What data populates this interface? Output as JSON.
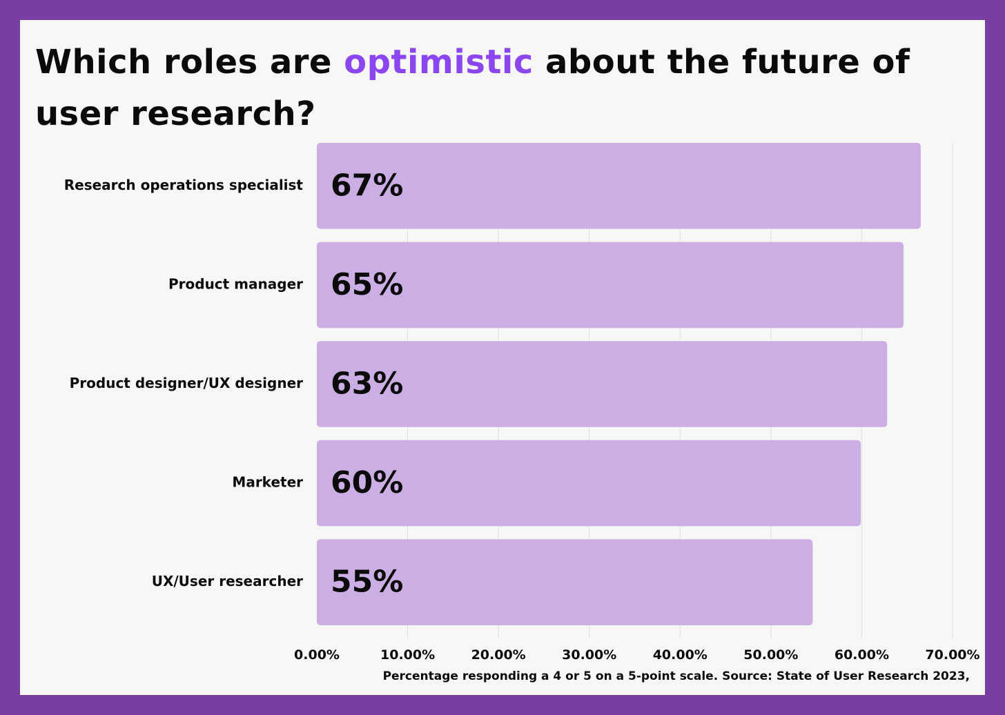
{
  "title": {
    "before": "Which roles are ",
    "accent": "optimistic",
    "after": " about the future of user research?"
  },
  "footnote": "Percentage responding a 4 or 5 on a 5-point scale. Source: State of User Research 2023,",
  "colors": {
    "frame": "#7a3ea3",
    "background": "#f7f7f5",
    "bar": "#cbaee3",
    "accent": "#8b46f0",
    "text": "#0a0a0a"
  },
  "chart_data": {
    "type": "bar",
    "orientation": "horizontal",
    "categories": [
      "Research operations specialist",
      "Product manager",
      "Product designer/UX designer",
      "Marketer",
      "UX/User researcher"
    ],
    "values": [
      0.665,
      0.646,
      0.628,
      0.599,
      0.546
    ],
    "value_labels": [
      "67%",
      "65%",
      "63%",
      "60%",
      "55%"
    ],
    "xlim": [
      0,
      0.7
    ],
    "xticks": [
      0,
      0.1,
      0.2,
      0.3,
      0.4,
      0.5,
      0.6,
      0.7
    ],
    "xtick_labels": [
      "0.00%",
      "10.00%",
      "20.00%",
      "30.00%",
      "40.00%",
      "50.00%",
      "60.00%",
      "70.00%"
    ],
    "grid": true
  }
}
